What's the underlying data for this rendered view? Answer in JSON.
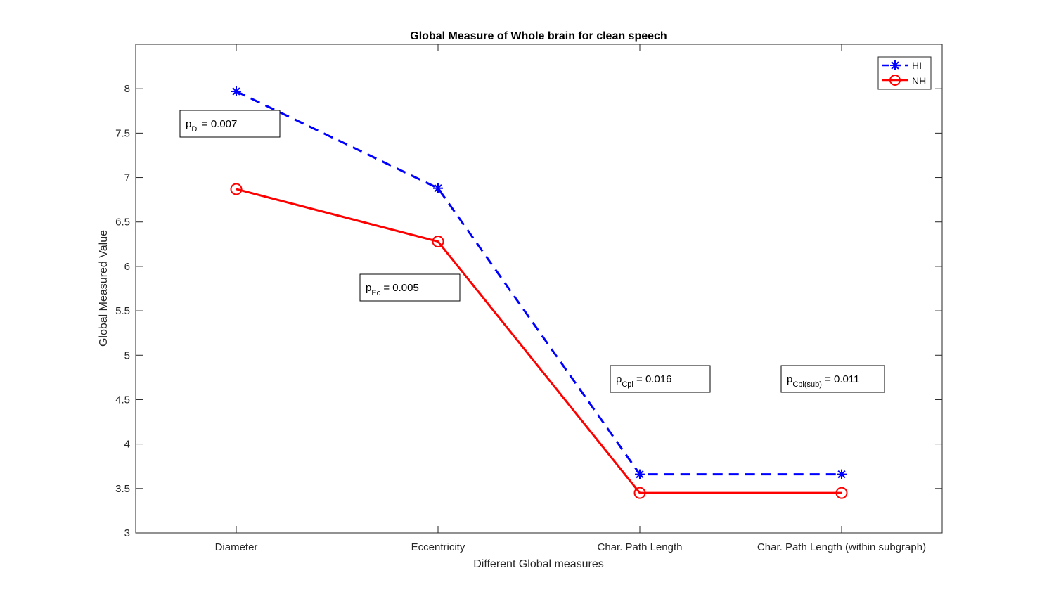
{
  "chart_data": {
    "type": "line",
    "title": "Global Measure of Whole brain for clean speech",
    "xlabel": "Different Global measures",
    "ylabel": "Global Measured Value",
    "categories": [
      "Diameter",
      "Eccentricity",
      "Char. Path Length",
      "Char. Path Length (within subgraph)"
    ],
    "ylim": [
      3,
      8.5
    ],
    "yticks": [
      "3",
      "3.5",
      "4",
      "4.5",
      "5",
      "5.5",
      "6",
      "6.5",
      "7",
      "7.5",
      "8"
    ],
    "grid": false,
    "legend_position": "top-right",
    "series": [
      {
        "name": "HI",
        "values": [
          7.97,
          6.88,
          3.66,
          3.66
        ],
        "color": "#0000ff",
        "line_style": "dashed",
        "marker": "asterisk"
      },
      {
        "name": "NH",
        "values": [
          6.87,
          6.28,
          3.45,
          3.45
        ],
        "color": "#ff0000",
        "line_style": "solid",
        "marker": "circle"
      }
    ],
    "annotations": [
      {
        "base": "p",
        "sub": "Di",
        "text": "=  0.007"
      },
      {
        "base": "p",
        "sub": "Ec",
        "text": "=  0.005"
      },
      {
        "base": "p",
        "sub": "Cpl",
        "text": "=  0.016"
      },
      {
        "base": "p",
        "sub": "Cpl(sub)",
        "text": "= 0.011"
      }
    ]
  }
}
